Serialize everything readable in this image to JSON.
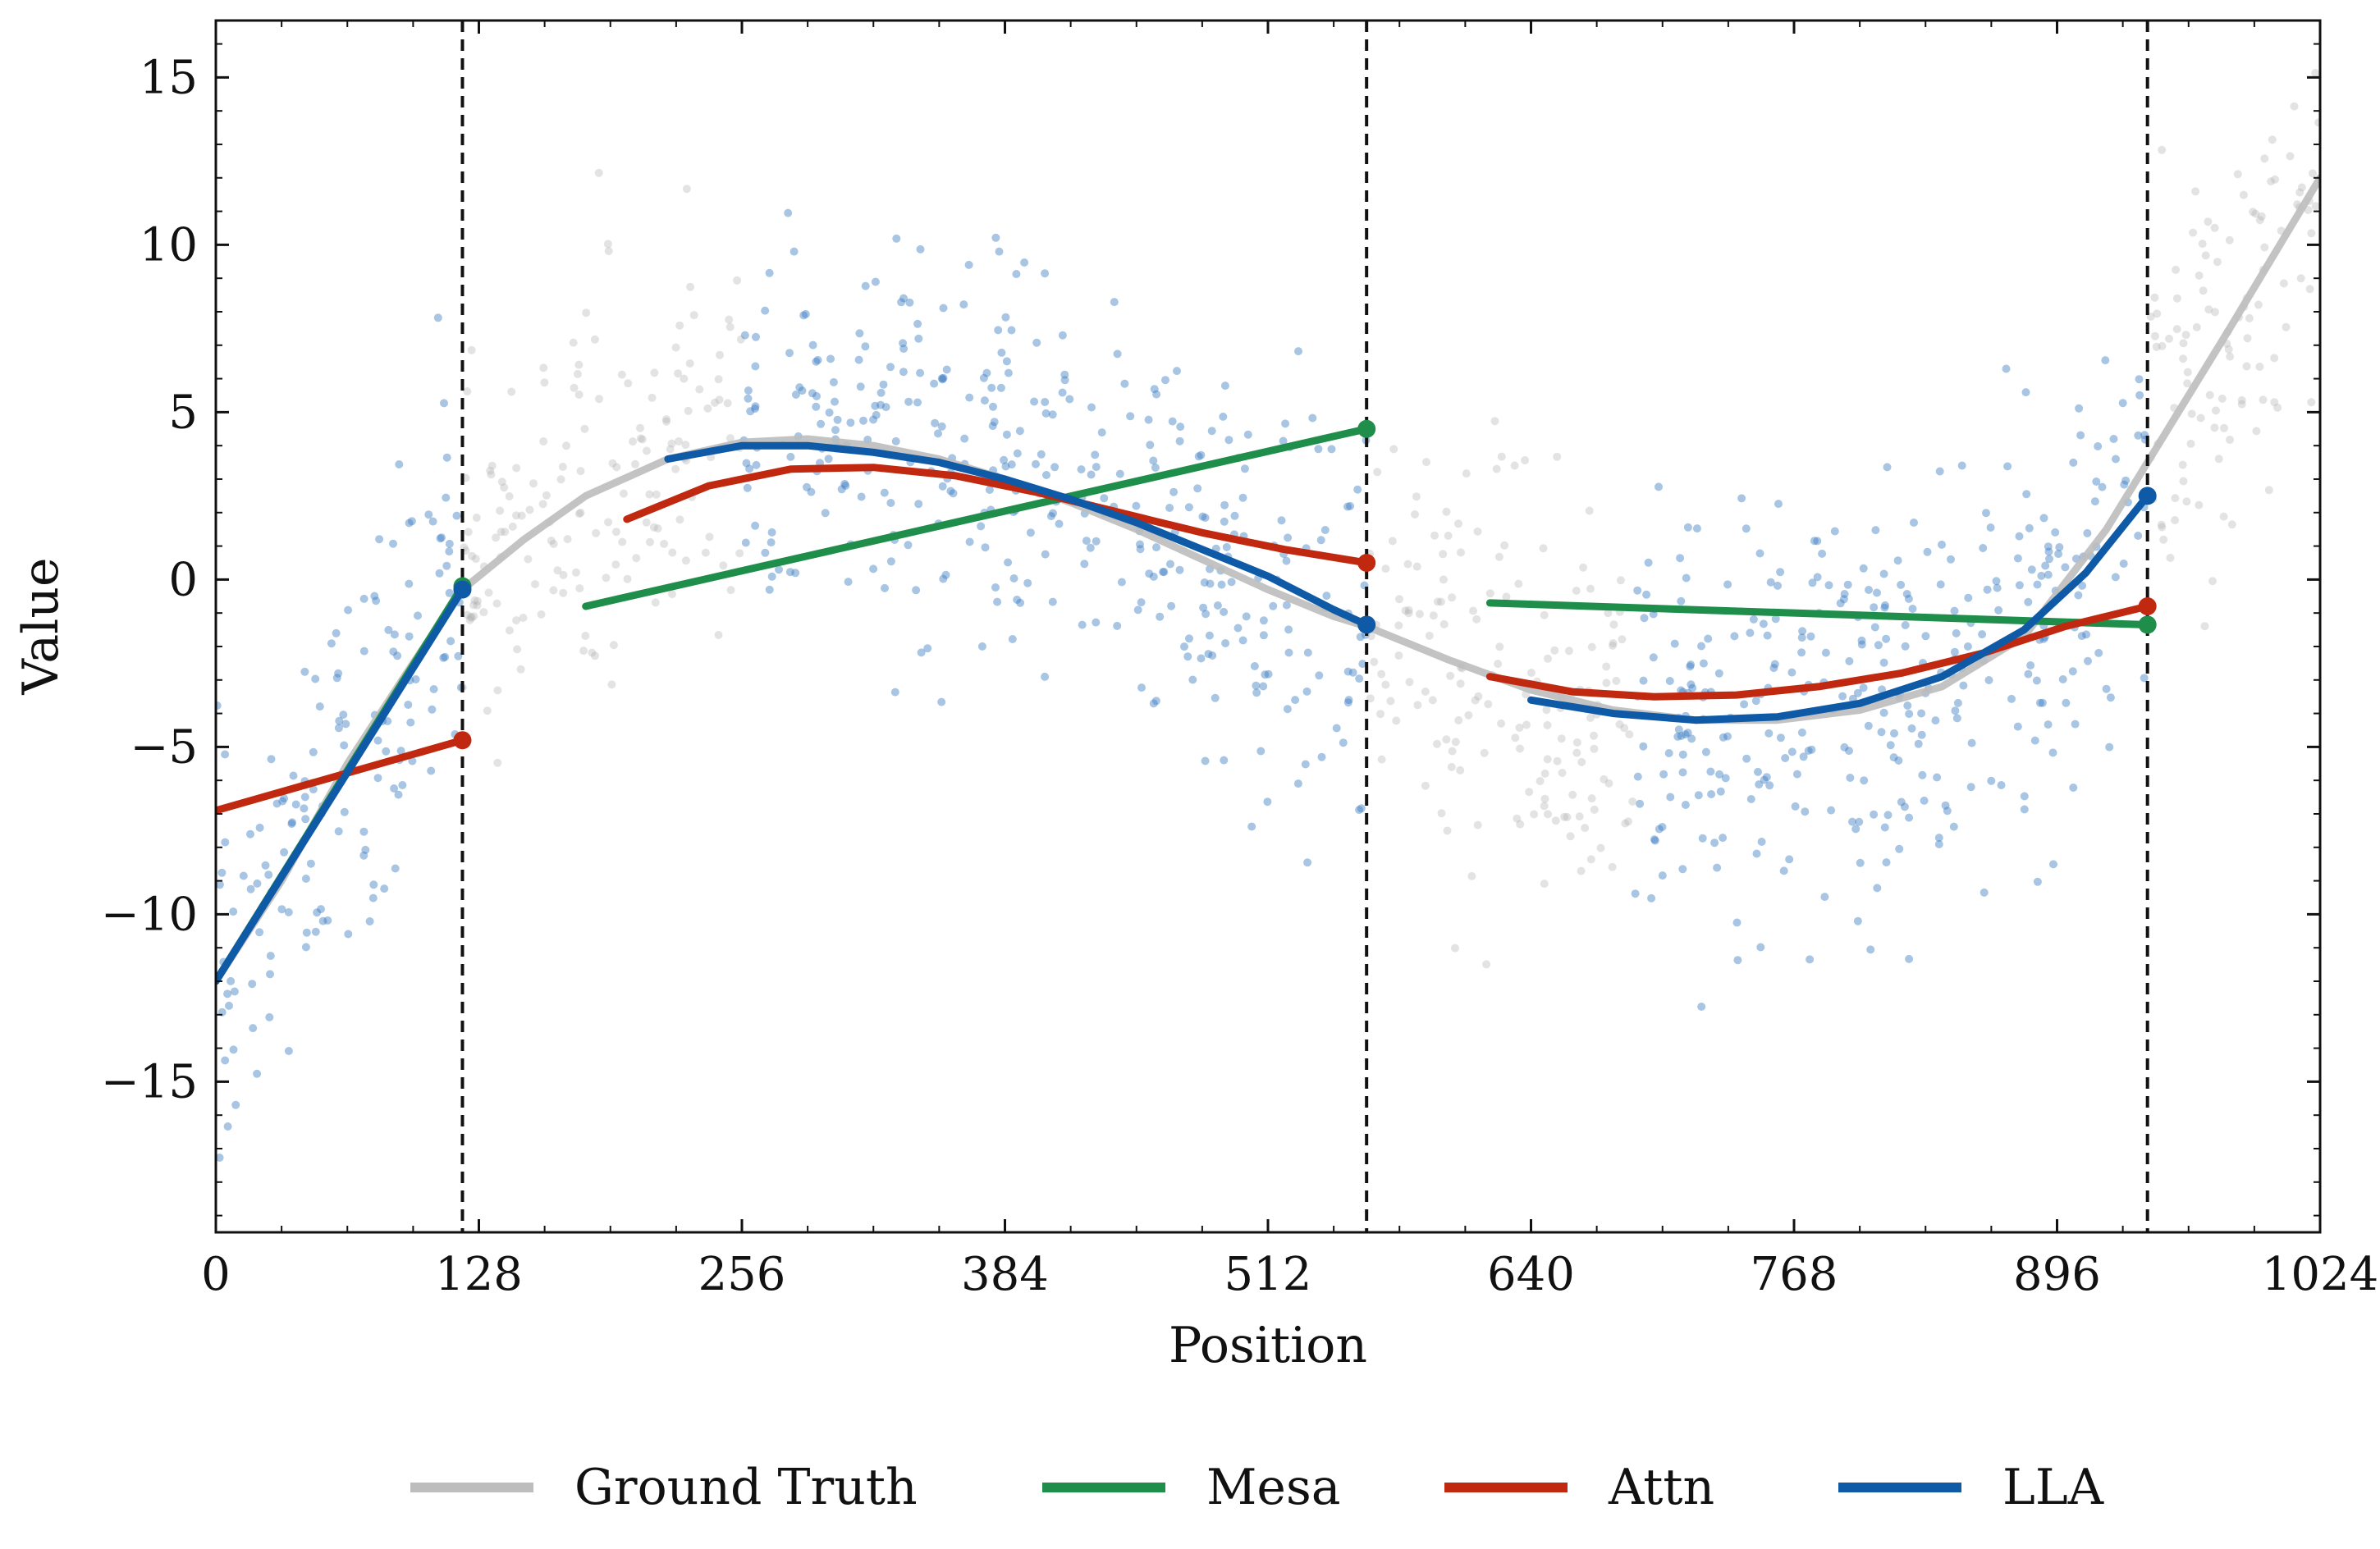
{
  "chart_data": {
    "type": "line",
    "title": "",
    "xlabel": "Position",
    "ylabel": "Value",
    "xlim": [
      0,
      1024
    ],
    "ylim": [
      -19.5,
      16.7
    ],
    "x_ticks": [
      0,
      128,
      256,
      384,
      512,
      640,
      768,
      896,
      1024
    ],
    "x_tick_labels": [
      "0",
      "128",
      "256",
      "384",
      "512",
      "640",
      "768",
      "896",
      "1024"
    ],
    "y_ticks": [
      -15,
      -10,
      -5,
      0,
      5,
      10,
      15
    ],
    "y_tick_labels": [
      "−15",
      "−10",
      "−5",
      "0",
      "5",
      "10",
      "15"
    ],
    "grid": false,
    "legend_position": "bottom-center",
    "segment_boundaries": [
      120,
      560,
      940
    ],
    "colors": {
      "ground_truth": "#bdbdbd",
      "mesa": "#1f8e4a",
      "attn": "#c0280f",
      "lla": "#0f5aa6",
      "scatter_context": "#3f7fc4",
      "scatter_other": "#b0b0b0",
      "boundary": "#111111"
    },
    "series": [
      {
        "name": "Ground Truth",
        "key": "ground_truth",
        "x": [
          0,
          32,
          64,
          96,
          120,
          150,
          180,
          220,
          256,
          288,
          320,
          352,
          384,
          416,
          448,
          480,
          512,
          544,
          560,
          600,
          640,
          680,
          720,
          760,
          800,
          840,
          880,
          920,
          940,
          980,
          1024
        ],
        "y": [
          -12,
          -9,
          -5.5,
          -2.5,
          -0.3,
          1.2,
          2.5,
          3.6,
          4.1,
          4.2,
          4.0,
          3.6,
          3.0,
          2.3,
          1.5,
          0.6,
          -0.3,
          -1.1,
          -1.4,
          -2.4,
          -3.3,
          -3.9,
          -4.2,
          -4.2,
          -3.9,
          -3.2,
          -1.7,
          1.5,
          3.5,
          7.5,
          12
        ]
      },
      {
        "name": "Mesa",
        "key": "mesa",
        "segments": [
          {
            "x": [
              0,
              120
            ],
            "y": [
              -12,
              -0.2
            ]
          },
          {
            "x": [
              180,
              560
            ],
            "y": [
              -0.8,
              4.5
            ]
          },
          {
            "x": [
              620,
              940
            ],
            "y": [
              -0.7,
              -1.35
            ]
          }
        ]
      },
      {
        "name": "Attn",
        "key": "attn",
        "segments": [
          {
            "x": [
              0,
              120
            ],
            "y": [
              -6.9,
              -4.8
            ]
          },
          {
            "x": [
              200,
              240,
              280,
              320,
              360,
              400,
              440,
              480,
              520,
              560
            ],
            "y": [
              1.8,
              2.8,
              3.3,
              3.35,
              3.1,
              2.6,
              2.0,
              1.4,
              0.9,
              0.5
            ]
          },
          {
            "x": [
              620,
              660,
              700,
              740,
              780,
              820,
              860,
              900,
              940
            ],
            "y": [
              -2.9,
              -3.35,
              -3.5,
              -3.45,
              -3.2,
              -2.8,
              -2.2,
              -1.4,
              -0.8
            ]
          }
        ]
      },
      {
        "name": "LLA",
        "key": "lla",
        "segments": [
          {
            "x": [
              0,
              120
            ],
            "y": [
              -12,
              -0.3
            ]
          },
          {
            "x": [
              220,
              256,
              288,
              320,
              352,
              384,
              416,
              448,
              480,
              512,
              544,
              560
            ],
            "y": [
              3.6,
              4.0,
              4.0,
              3.8,
              3.5,
              3.0,
              2.4,
              1.7,
              0.9,
              0.1,
              -0.9,
              -1.35
            ]
          },
          {
            "x": [
              640,
              680,
              720,
              760,
              800,
              840,
              880,
              910,
              940
            ],
            "y": [
              -3.6,
              -4.0,
              -4.2,
              -4.1,
              -3.7,
              -2.9,
              -1.5,
              0.2,
              2.5
            ]
          }
        ]
      }
    ],
    "endpoint_markers": [
      {
        "series": "mesa",
        "x": 120,
        "y": -0.2
      },
      {
        "series": "lla",
        "x": 120,
        "y": -0.3
      },
      {
        "series": "attn",
        "x": 120,
        "y": -4.8
      },
      {
        "series": "mesa",
        "x": 560,
        "y": 4.5
      },
      {
        "series": "attn",
        "x": 560,
        "y": 0.5
      },
      {
        "series": "lla",
        "x": 560,
        "y": -1.35
      },
      {
        "series": "lla",
        "x": 940,
        "y": 2.5
      },
      {
        "series": "attn",
        "x": 940,
        "y": -0.8
      },
      {
        "series": "mesa",
        "x": 940,
        "y": -1.35
      }
    ],
    "scatter": {
      "description_count_per_100_positions": 130,
      "noise_sd": 3.0
    }
  }
}
